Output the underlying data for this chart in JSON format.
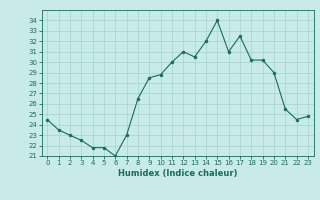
{
  "x": [
    0,
    1,
    2,
    3,
    4,
    5,
    6,
    7,
    8,
    9,
    10,
    11,
    12,
    13,
    14,
    15,
    16,
    17,
    18,
    19,
    20,
    21,
    22,
    23
  ],
  "y": [
    24.5,
    23.5,
    23.0,
    22.5,
    21.8,
    21.8,
    21.0,
    23.0,
    26.5,
    28.5,
    28.8,
    30.0,
    31.0,
    30.5,
    32.0,
    34.0,
    31.0,
    32.5,
    30.2,
    30.2,
    29.0,
    25.5,
    24.5,
    24.8
  ],
  "line_color": "#1a6b5a",
  "marker_color": "#1a6b5a",
  "bg_color": "#c8ebe8",
  "grid_color": "#a0d4cf",
  "xlabel": "Humidex (Indice chaleur)",
  "ylim": [
    21,
    35
  ],
  "yticks": [
    21,
    22,
    23,
    24,
    25,
    26,
    27,
    28,
    29,
    30,
    31,
    32,
    33,
    34
  ],
  "xlim": [
    -0.5,
    23.5
  ],
  "xticks": [
    0,
    1,
    2,
    3,
    4,
    5,
    6,
    7,
    8,
    9,
    10,
    11,
    12,
    13,
    14,
    15,
    16,
    17,
    18,
    19,
    20,
    21,
    22,
    23
  ]
}
